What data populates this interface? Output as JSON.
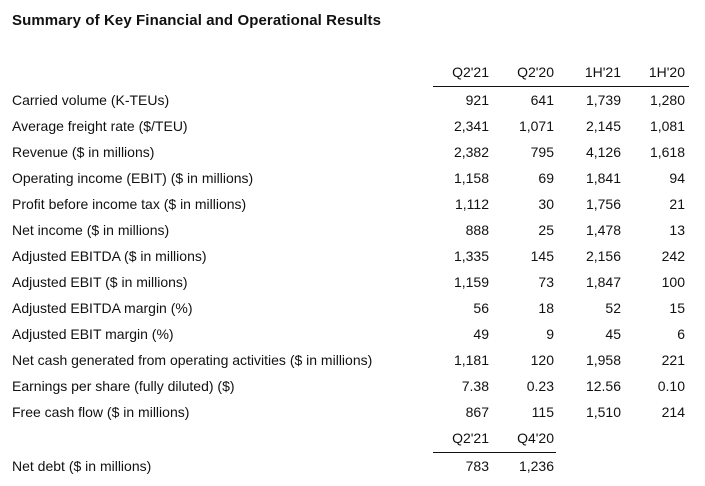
{
  "title": "Summary of Key Financial and Operational Results",
  "headers": [
    "Q2'21",
    "Q2'20",
    "1H'21",
    "1H'20"
  ],
  "rows": [
    {
      "label": "Carried volume (K-TEUs)",
      "values": [
        "921",
        "641",
        "1,739",
        "1,280"
      ]
    },
    {
      "label": "Average freight rate ($/TEU)",
      "values": [
        "2,341",
        "1,071",
        "2,145",
        "1,081"
      ]
    },
    {
      "label": "Revenue ($ in millions)",
      "values": [
        "2,382",
        "795",
        "4,126",
        "1,618"
      ]
    },
    {
      "label": "Operating income (EBIT) ($ in millions)",
      "values": [
        "1,158",
        "69",
        "1,841",
        "94"
      ]
    },
    {
      "label": "Profit before income tax ($ in millions)",
      "values": [
        "1,112",
        "30",
        "1,756",
        "21"
      ]
    },
    {
      "label": "Net income ($ in millions)",
      "values": [
        "888",
        "25",
        "1,478",
        "13"
      ]
    },
    {
      "label": "Adjusted EBITDA ($ in millions)",
      "values": [
        "1,335",
        "145",
        "2,156",
        "242"
      ]
    },
    {
      "label": "Adjusted EBIT ($ in millions)",
      "values": [
        "1,159",
        "73",
        "1,847",
        "100"
      ]
    },
    {
      "label": "Adjusted EBITDA margin (%)",
      "values": [
        "56",
        "18",
        "52",
        "15"
      ]
    },
    {
      "label": "Adjusted EBIT margin (%)",
      "values": [
        "49",
        "9",
        "45",
        "6"
      ]
    },
    {
      "label": "Net cash generated from operating activities ($ in millions)",
      "values": [
        "1,181",
        "120",
        "1,958",
        "221"
      ]
    },
    {
      "label": "Earnings per share (fully diluted) ($)",
      "values": [
        "7.38",
        "0.23",
        "12.56",
        "0.10"
      ]
    },
    {
      "label": "Free cash flow ($ in millions)",
      "values": [
        "867",
        "115",
        "1,510",
        "214"
      ]
    }
  ],
  "debt_headers": [
    "Q2'21",
    "Q4'20"
  ],
  "debt_row": {
    "label": "Net debt ($ in millions)",
    "values": [
      "783",
      "1,236"
    ]
  }
}
